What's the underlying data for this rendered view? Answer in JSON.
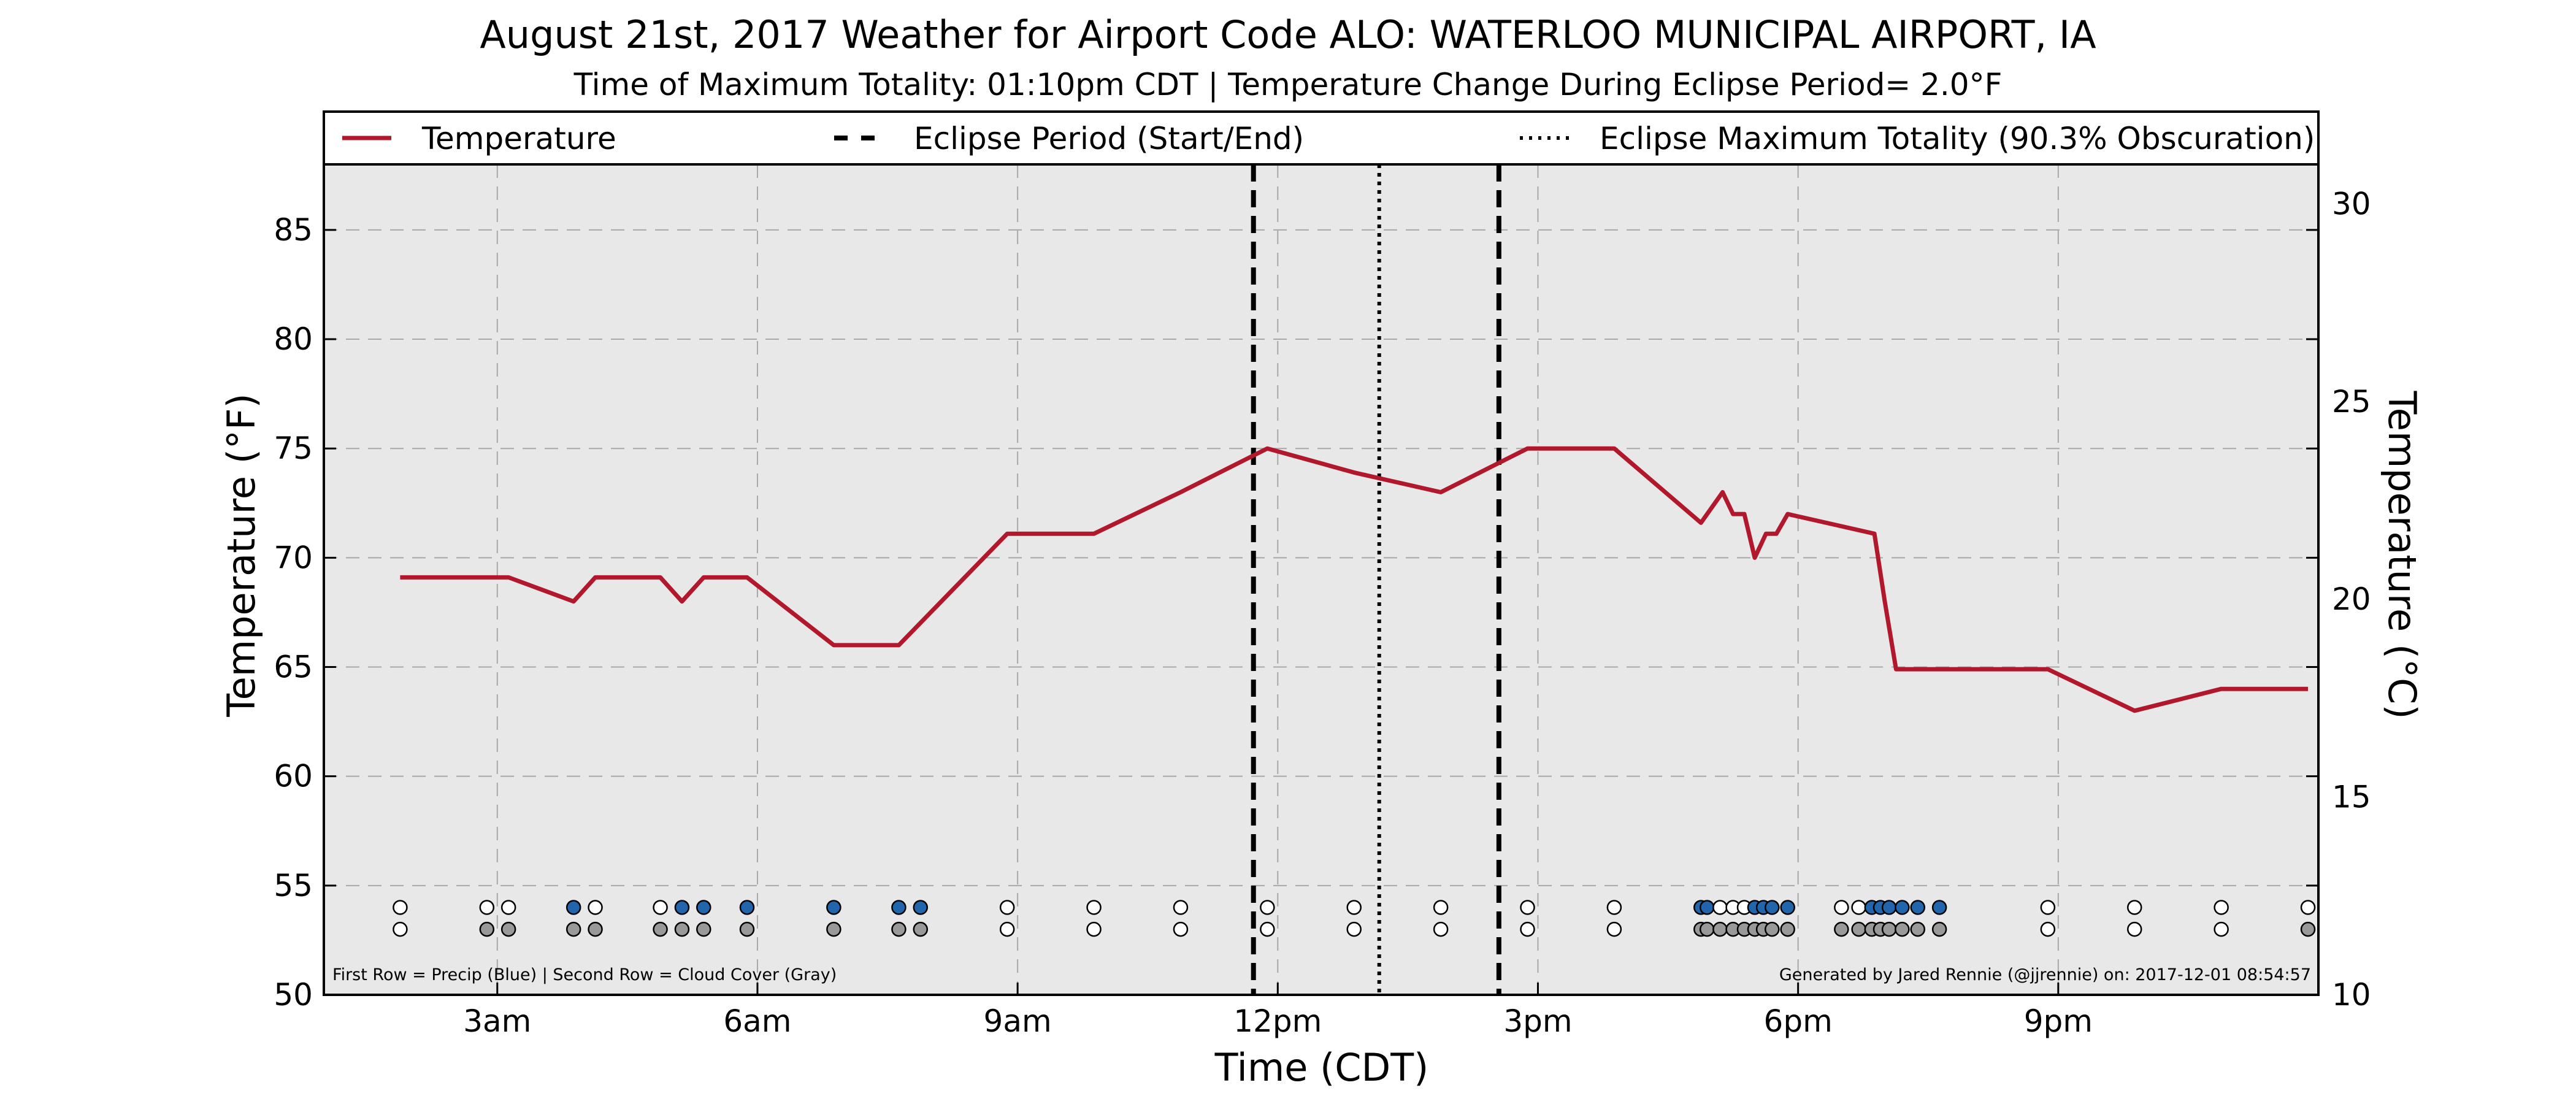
{
  "chart_data": {
    "type": "line",
    "title": "August 21st, 2017 Weather for Airport Code ALO: WATERLOO MUNICIPAL AIRPORT, IA",
    "subtitle": "Time of Maximum Totality: 01:10pm CDT | Temperature Change During Eclipse Period= 2.0°F",
    "xlabel": "Time (CDT)",
    "ylabel": "Temperature (°F)",
    "y2label": "Temperature (°C)",
    "x_unit": "hours since midnight CDT",
    "xlim": [
      1.0,
      24.0
    ],
    "ylim": [
      50,
      88
    ],
    "y2lim": [
      10,
      31
    ],
    "x_ticks": [
      {
        "x": 3,
        "label": "3am"
      },
      {
        "x": 6,
        "label": "6am"
      },
      {
        "x": 9,
        "label": "9am"
      },
      {
        "x": 12,
        "label": "12pm"
      },
      {
        "x": 15,
        "label": "3pm"
      },
      {
        "x": 18,
        "label": "6pm"
      },
      {
        "x": 21,
        "label": "9pm"
      }
    ],
    "y_ticks": [
      50,
      55,
      60,
      65,
      70,
      75,
      80,
      85
    ],
    "y2_ticks": [
      10,
      15,
      20,
      25,
      30
    ],
    "grid": true,
    "legend": {
      "placement": "top",
      "entries": [
        {
          "label": "Temperature",
          "style": "solid"
        },
        {
          "label": "Eclipse Period (Start/End)",
          "style": "dashed"
        },
        {
          "label": "Eclipse Maximum Totality (90.3% Obscuration)",
          "style": "dotted"
        }
      ]
    },
    "series": [
      {
        "name": "Temperature",
        "color": "#b2182b",
        "x": [
          1.88,
          2.88,
          3.13,
          3.88,
          4.13,
          4.88,
          5.13,
          5.38,
          5.88,
          6.88,
          7.13,
          7.63,
          8.88,
          9.88,
          10.88,
          11.88,
          12.88,
          13.88,
          14.88,
          15.88,
          16.88,
          17.13,
          17.25,
          17.38,
          17.5,
          17.63,
          17.75,
          17.88,
          18.88,
          19.0,
          19.13,
          19.38,
          19.63,
          20.88,
          21.88,
          22.88,
          23.88
        ],
        "values": [
          69.1,
          69.1,
          69.1,
          68.0,
          69.1,
          69.1,
          68.0,
          69.1,
          69.1,
          66.0,
          66.0,
          66.0,
          71.1,
          71.1,
          73.0,
          75.0,
          73.9,
          73.0,
          75.0,
          75.0,
          71.6,
          73.0,
          72.0,
          72.0,
          70.0,
          71.1,
          71.1,
          72.0,
          71.1,
          68.0,
          64.9,
          64.9,
          64.9,
          64.9,
          63.0,
          64.0,
          64.0
        ]
      }
    ],
    "eclipse": {
      "start": 11.72,
      "max": 13.17,
      "end": 14.55
    },
    "precip_dots": {
      "x": [
        1.88,
        2.88,
        3.13,
        3.88,
        4.13,
        4.88,
        5.13,
        5.38,
        5.88,
        6.88,
        7.63,
        7.88,
        8.88,
        9.88,
        10.88,
        11.88,
        12.88,
        13.88,
        14.88,
        15.88,
        16.88,
        16.95,
        17.1,
        17.25,
        17.38,
        17.5,
        17.6,
        17.7,
        17.88,
        18.5,
        18.7,
        18.85,
        18.95,
        19.05,
        19.2,
        19.38,
        19.63,
        20.88,
        21.88,
        22.88,
        23.88
      ],
      "precip": [
        false,
        false,
        false,
        true,
        false,
        false,
        true,
        true,
        true,
        true,
        true,
        true,
        false,
        false,
        false,
        false,
        false,
        false,
        false,
        false,
        true,
        true,
        false,
        false,
        false,
        true,
        true,
        true,
        true,
        false,
        false,
        true,
        true,
        true,
        true,
        true,
        true,
        false,
        false,
        false,
        false
      ]
    },
    "cloud_dots": {
      "x": [
        1.88,
        2.88,
        3.13,
        3.88,
        4.13,
        4.88,
        5.13,
        5.38,
        5.88,
        6.88,
        7.63,
        7.88,
        8.88,
        9.88,
        10.88,
        11.88,
        12.88,
        13.88,
        14.88,
        15.88,
        16.88,
        16.95,
        17.1,
        17.25,
        17.38,
        17.5,
        17.6,
        17.7,
        17.88,
        18.5,
        18.7,
        18.85,
        18.95,
        19.05,
        19.2,
        19.38,
        19.63,
        20.88,
        21.88,
        22.88,
        23.88
      ],
      "cloud": [
        false,
        true,
        true,
        true,
        true,
        true,
        true,
        true,
        true,
        true,
        true,
        true,
        false,
        false,
        false,
        false,
        false,
        false,
        false,
        false,
        true,
        true,
        true,
        true,
        true,
        true,
        true,
        true,
        true,
        true,
        true,
        true,
        true,
        true,
        true,
        true,
        true,
        false,
        false,
        false,
        true
      ]
    },
    "colors": {
      "precip": "#2166ac",
      "cloud": "#999999",
      "none": "#ffffff",
      "plot_bg": "#e8e8e8"
    },
    "annotation_left": "First Row = Precip (Blue) | Second Row = Cloud Cover (Gray)",
    "annotation_right": "Generated by Jared Rennie (@jjrennie) on: 2017-12-01 08:54:57"
  }
}
